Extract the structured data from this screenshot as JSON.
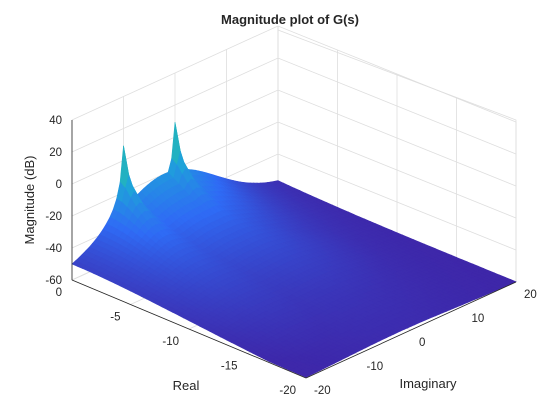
{
  "chart_data": {
    "type": "surface",
    "title": "Magnitude plot of G(s)",
    "xlabel": "Real",
    "ylabel": "Imaginary",
    "zlabel": "Magnitude (dB)",
    "xlim": [
      -20,
      0
    ],
    "ylim": [
      -20,
      20
    ],
    "zlim": [
      -60,
      40
    ],
    "xticks": [
      0,
      -5,
      -10,
      -15,
      -20
    ],
    "yticks": [
      -20,
      -10,
      0,
      10,
      20
    ],
    "zticks": [
      -60,
      -40,
      -20,
      0,
      20,
      40
    ],
    "grid": true,
    "colormap": "parula",
    "poles": [
      {
        "re": 0,
        "im": -10,
        "peak_db": 38
      },
      {
        "re": 0,
        "im": 0,
        "peak_db": 42
      }
    ],
    "surface_samples": [
      {
        "re": 0,
        "im": 20,
        "mag_db": -20
      },
      {
        "re": 0,
        "im": -20,
        "mag_db": -60
      },
      {
        "re": -20,
        "im": -20,
        "mag_db": -60
      },
      {
        "re": -20,
        "im": 20,
        "mag_db": -58
      },
      {
        "re": 0,
        "im": -5,
        "mag_db": 0
      },
      {
        "re": -10,
        "im": 0,
        "mag_db": -40
      }
    ]
  }
}
